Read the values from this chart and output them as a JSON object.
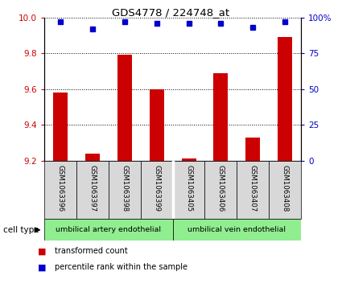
{
  "title": "GDS4778 / 224748_at",
  "samples": [
    "GSM1063396",
    "GSM1063397",
    "GSM1063398",
    "GSM1063399",
    "GSM1063405",
    "GSM1063406",
    "GSM1063407",
    "GSM1063408"
  ],
  "transformed_counts": [
    9.58,
    9.24,
    9.79,
    9.6,
    9.21,
    9.69,
    9.33,
    9.89
  ],
  "percentile_ranks": [
    97,
    92,
    97,
    96,
    96,
    96,
    93,
    97
  ],
  "ylim_left": [
    9.2,
    10.0
  ],
  "ylim_right": [
    0,
    100
  ],
  "yticks_left": [
    9.2,
    9.4,
    9.6,
    9.8,
    10.0
  ],
  "yticks_right": [
    0,
    25,
    50,
    75,
    100
  ],
  "bar_color": "#cc0000",
  "dot_color": "#0000cc",
  "bar_width": 0.45,
  "cell_types": [
    {
      "label": "umbilical artery endothelial",
      "start": 0,
      "end": 3,
      "color": "#90ee90"
    },
    {
      "label": "umbilical vein endothelial",
      "start": 4,
      "end": 7,
      "color": "#90ee90"
    }
  ],
  "cell_type_label": "cell type",
  "legend_items": [
    {
      "label": "transformed count",
      "color": "#cc0000"
    },
    {
      "label": "percentile rank within the sample",
      "color": "#0000cc"
    }
  ],
  "tick_label_color_left": "#cc0000",
  "tick_label_color_right": "#0000cc",
  "bg_color": "#d8d8d8"
}
